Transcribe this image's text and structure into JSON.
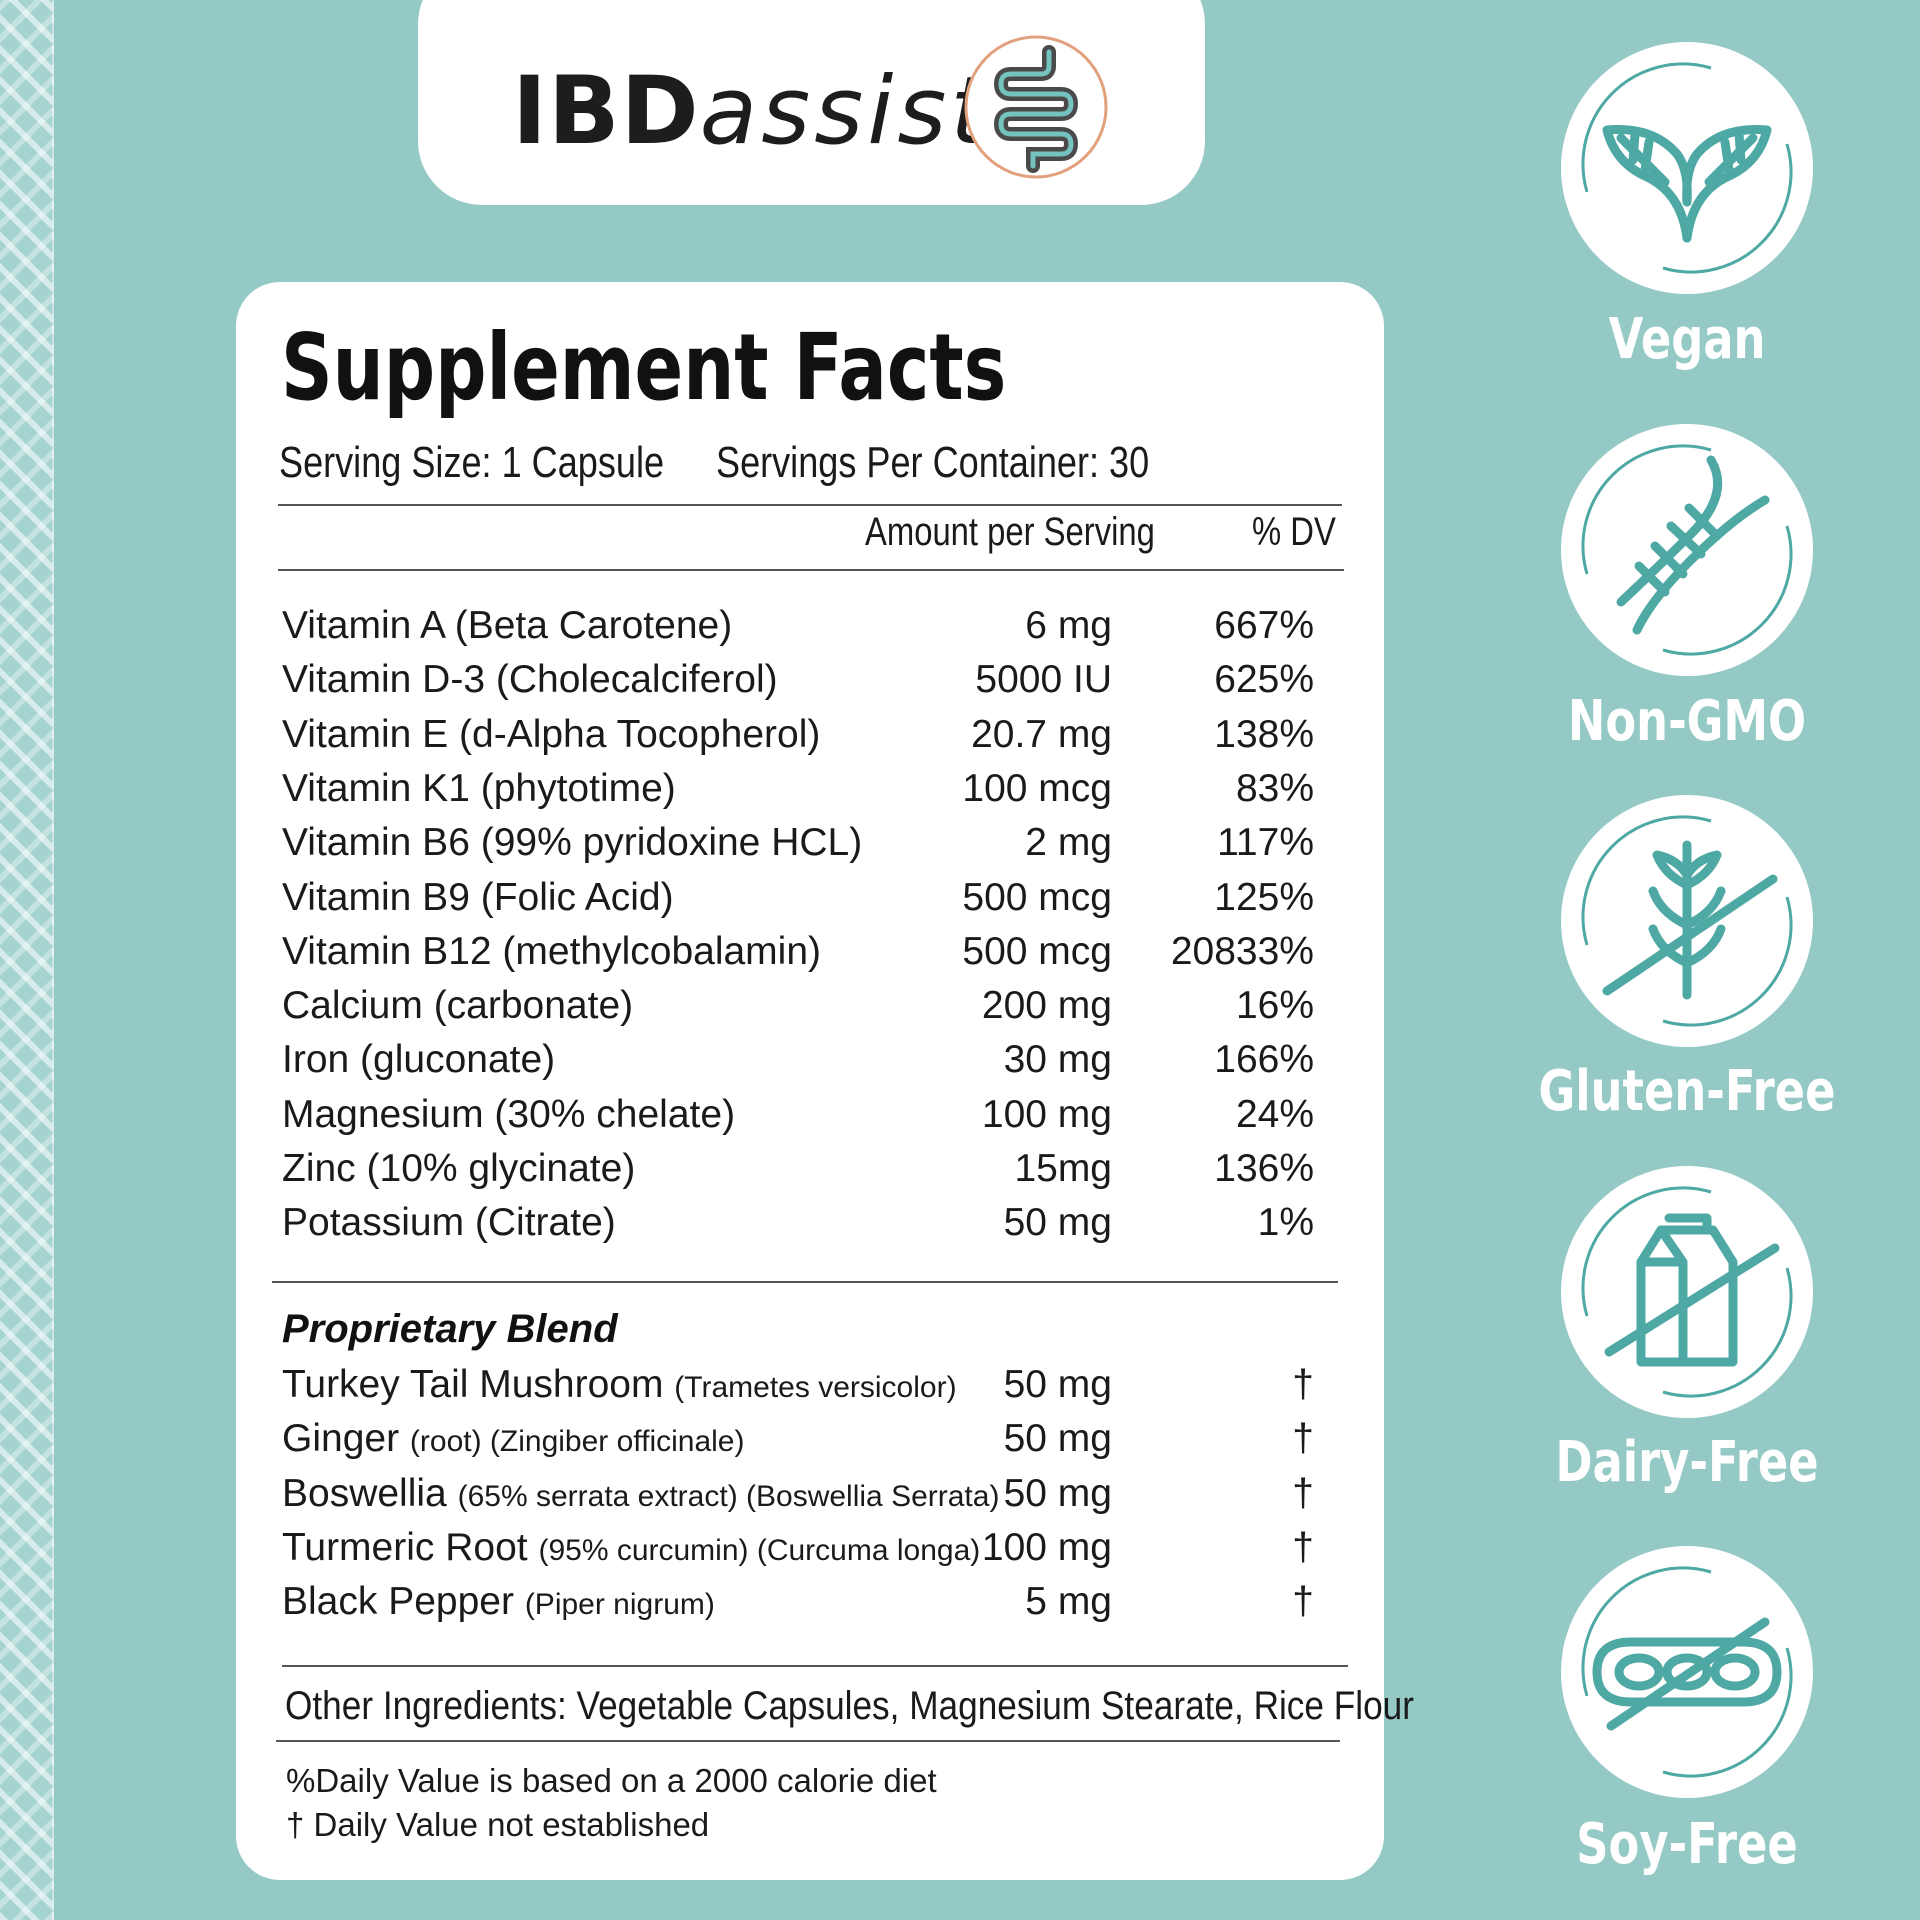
{
  "brand": {
    "bold": "IBD",
    "light": "assist"
  },
  "facts": {
    "title": "Supplement Facts",
    "serving_size": "Serving Size: 1 Capsule",
    "servings_per_container": "Servings Per Container: 30",
    "col_amount": "Amount per Serving",
    "col_dv": "% DV",
    "nutrients": [
      {
        "name": "Vitamin A (Beta Carotene)",
        "amount": "6 mg",
        "dv": "667%"
      },
      {
        "name": "Vitamin D-3 (Cholecalciferol)",
        "amount": "5000 IU",
        "dv": "625%"
      },
      {
        "name": "Vitamin E (d-Alpha Tocopherol)",
        "amount": "20.7 mg",
        "dv": "138%"
      },
      {
        "name": "Vitamin K1 (phytotime)",
        "amount": "100 mcg",
        "dv": "83%"
      },
      {
        "name": "Vitamin B6 (99% pyridoxine HCL)",
        "amount": "2 mg",
        "dv": "117%"
      },
      {
        "name": "Vitamin B9 (Folic Acid)",
        "amount": "500 mcg",
        "dv": "125%"
      },
      {
        "name": "Vitamin B12 (methylcobalamin)",
        "amount": "500 mcg",
        "dv": "20833%"
      },
      {
        "name": "Calcium (carbonate)",
        "amount": "200 mg",
        "dv": "16%"
      },
      {
        "name": "Iron (gluconate)",
        "amount": "30 mg",
        "dv": "166%"
      },
      {
        "name": "Magnesium (30% chelate)",
        "amount": "100 mg",
        "dv": "24%"
      },
      {
        "name": "Zinc (10% glycinate)",
        "amount": "15mg",
        "dv": "136%"
      },
      {
        "name": "Potassium (Citrate)",
        "amount": "50 mg",
        "dv": "1%"
      }
    ],
    "blend_title": "Proprietary Blend",
    "blend": [
      {
        "name": "Turkey Tail Mushroom",
        "detail": "(Trametes versicolor)",
        "amount": "50 mg",
        "dv": "†"
      },
      {
        "name": "Ginger",
        "detail": "(root)  (Zingiber officinale)",
        "amount": "50 mg",
        "dv": "†"
      },
      {
        "name": "Boswellia",
        "detail": "(65% serrata extract)  (Boswellia Serrata)",
        "amount": "50 mg",
        "dv": "†"
      },
      {
        "name": "Turmeric Root",
        "detail": "(95% curcumin) (Curcuma longa)",
        "amount": "100 mg",
        "dv": "†"
      },
      {
        "name": "Black Pepper",
        "detail": "(Piper nigrum)",
        "amount": "5 mg",
        "dv": "†"
      }
    ],
    "other_ingredients": "Other Ingredients:  Vegetable Capsules, Magnesium Stearate, Rice Flour",
    "footnote_1": "%Daily Value is based on a 2000 calorie diet",
    "footnote_2": "† Daily Value not established"
  },
  "badges": [
    {
      "label": "Vegan",
      "icon": "leaf-icon"
    },
    {
      "label": "Non-GMO",
      "icon": "dna-icon"
    },
    {
      "label": "Gluten-Free",
      "icon": "wheat-crossed-icon"
    },
    {
      "label": "Dairy-Free",
      "icon": "milk-carton-crossed-icon"
    },
    {
      "label": "Soy-Free",
      "icon": "soy-crossed-icon"
    }
  ],
  "colors": {
    "background": "#94c9c6",
    "accent": "#4ea8a3",
    "logo_ring": "#e2a07c"
  }
}
